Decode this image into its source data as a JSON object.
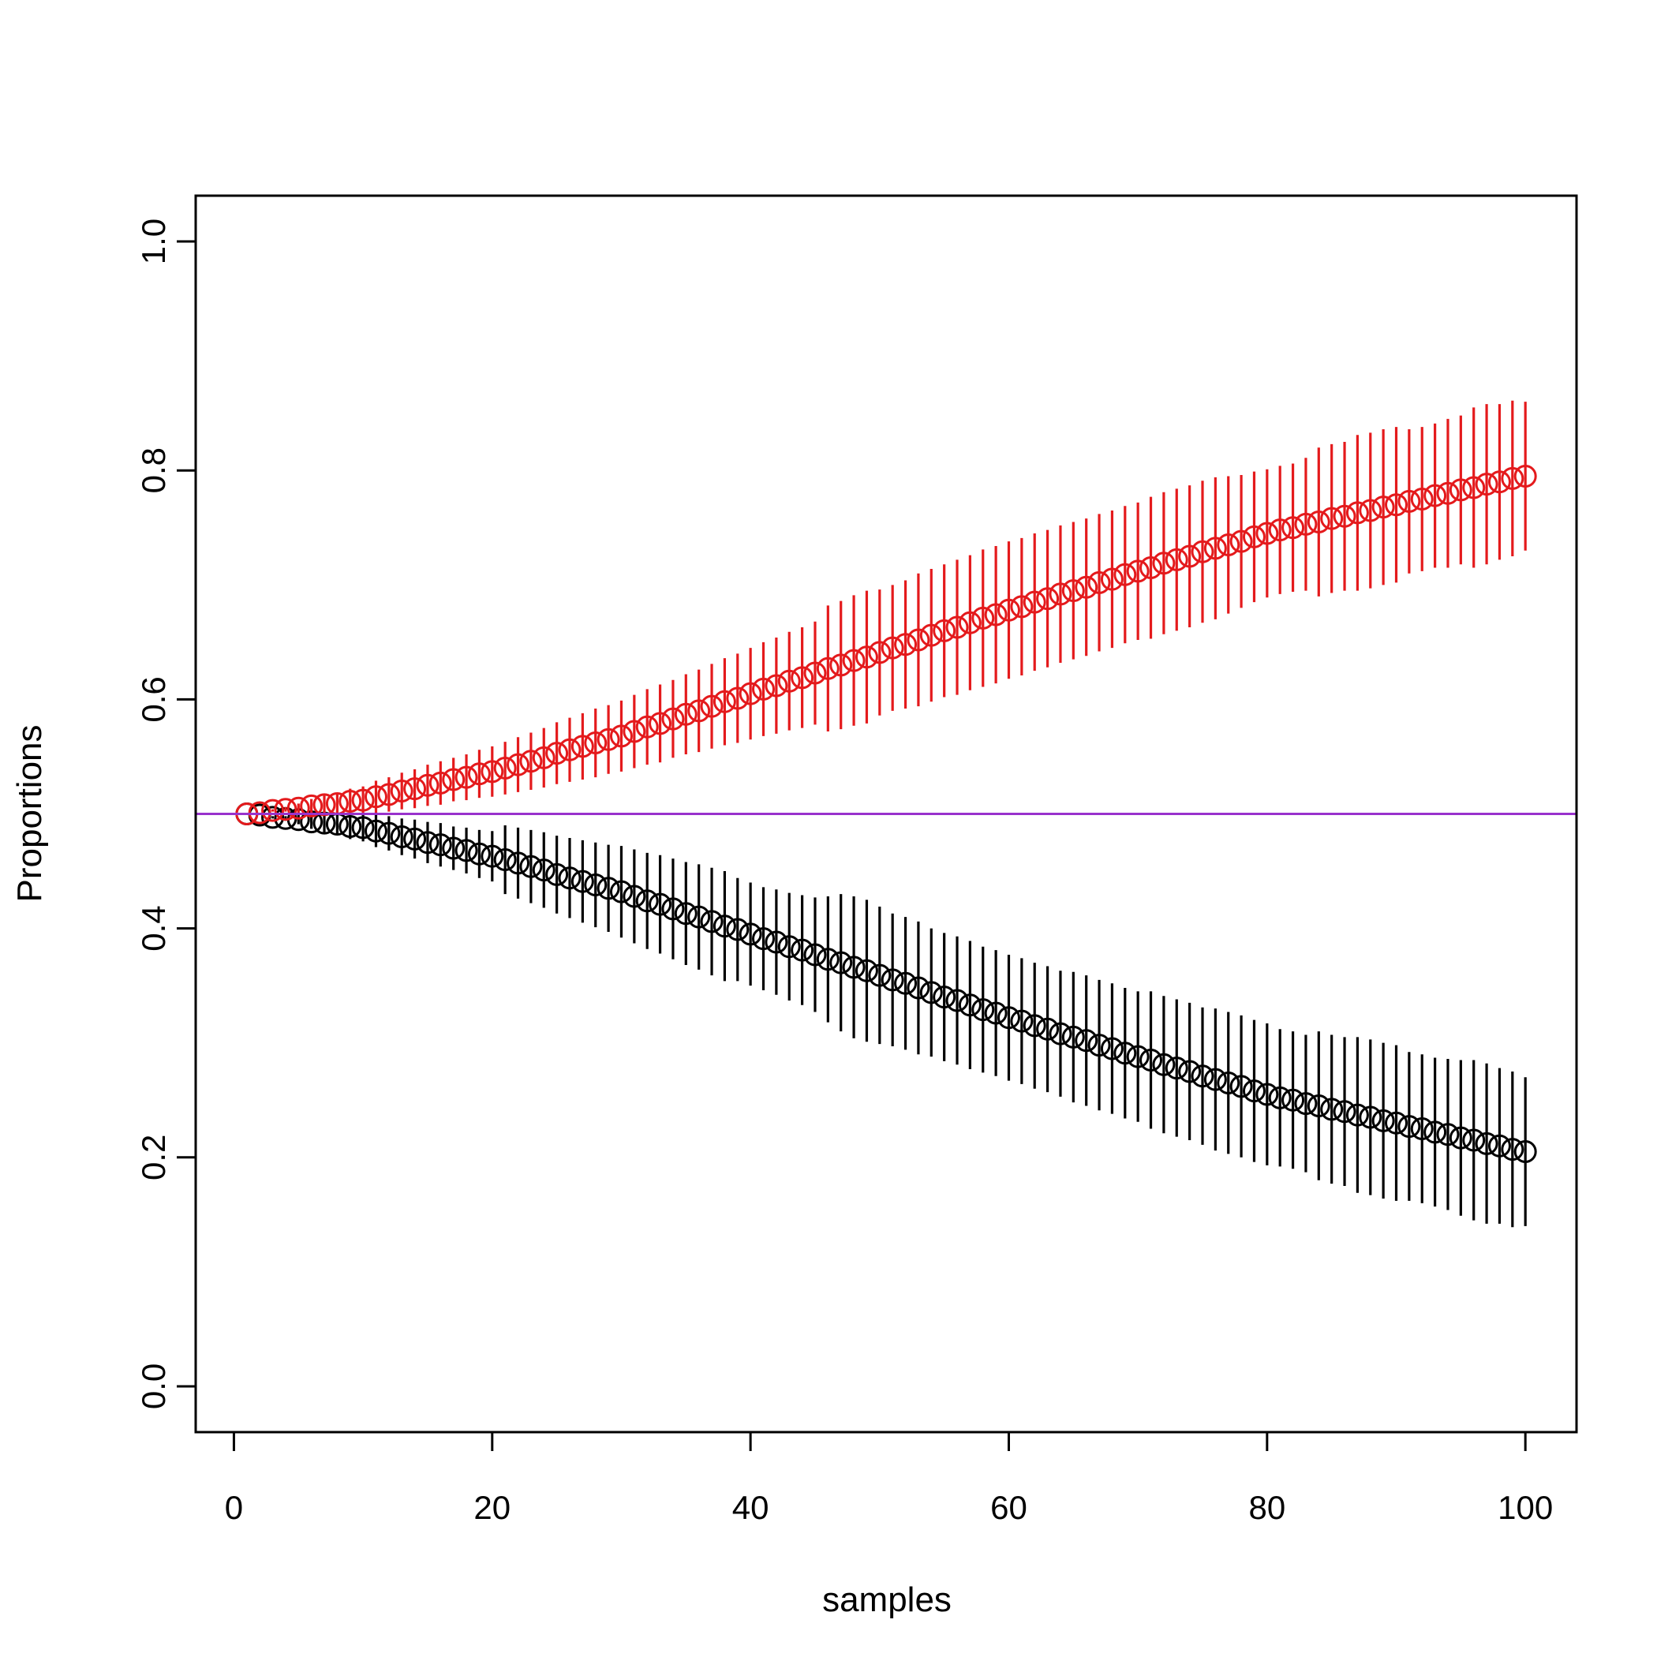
{
  "chart_data": {
    "type": "errorbar",
    "xlabel": "samples",
    "ylabel": "Proportions",
    "xlim": [
      -2.96,
      103.96
    ],
    "ylim": [
      -0.04,
      1.04
    ],
    "xticks": [
      0,
      20,
      40,
      60,
      80,
      100
    ],
    "yticks": [
      {
        "value": 0,
        "label": "0.0"
      },
      0.2,
      0.4,
      0.6,
      0.8,
      {
        "value": 1,
        "label": "1.0"
      }
    ],
    "reference_line": {
      "value": 0.5,
      "color": "#9932cc"
    },
    "x": [
      1,
      2,
      3,
      4,
      5,
      6,
      7,
      8,
      9,
      10,
      11,
      12,
      13,
      14,
      15,
      16,
      17,
      18,
      19,
      20,
      21,
      22,
      23,
      24,
      25,
      26,
      27,
      28,
      29,
      30,
      31,
      32,
      33,
      34,
      35,
      36,
      37,
      38,
      39,
      40,
      41,
      42,
      43,
      44,
      45,
      46,
      47,
      48,
      49,
      50,
      51,
      52,
      53,
      54,
      55,
      56,
      57,
      58,
      59,
      60,
      61,
      62,
      63,
      64,
      65,
      66,
      67,
      68,
      69,
      70,
      71,
      72,
      73,
      74,
      75,
      76,
      77,
      78,
      79,
      80,
      81,
      82,
      83,
      84,
      85,
      86,
      87,
      88,
      89,
      90,
      91,
      92,
      93,
      94,
      95,
      96,
      97,
      98,
      99,
      100
    ],
    "series": [
      {
        "color": "#000000",
        "values": [
          0.5,
          0.499,
          0.497,
          0.496,
          0.495,
          0.493,
          0.492,
          0.491,
          0.489,
          0.488,
          0.485,
          0.483,
          0.48,
          0.478,
          0.475,
          0.473,
          0.47,
          0.468,
          0.465,
          0.463,
          0.46,
          0.457,
          0.454,
          0.451,
          0.447,
          0.444,
          0.441,
          0.438,
          0.435,
          0.432,
          0.428,
          0.424,
          0.421,
          0.417,
          0.413,
          0.41,
          0.406,
          0.402,
          0.399,
          0.395,
          0.391,
          0.388,
          0.384,
          0.381,
          0.377,
          0.373,
          0.37,
          0.366,
          0.363,
          0.359,
          0.355,
          0.352,
          0.348,
          0.344,
          0.34,
          0.337,
          0.333,
          0.329,
          0.326,
          0.322,
          0.319,
          0.315,
          0.312,
          0.308,
          0.305,
          0.302,
          0.298,
          0.295,
          0.291,
          0.288,
          0.285,
          0.281,
          0.278,
          0.275,
          0.271,
          0.268,
          0.265,
          0.262,
          0.258,
          0.255,
          0.252,
          0.25,
          0.247,
          0.245,
          0.242,
          0.24,
          0.237,
          0.235,
          0.232,
          0.23,
          0.227,
          0.225,
          0.222,
          0.22,
          0.217,
          0.215,
          0.212,
          0.21,
          0.207,
          0.205
        ],
        "errors": [
          0,
          0,
          0.001,
          0.002,
          0.004,
          0.006,
          0.008,
          0.009,
          0.011,
          0.012,
          0.014,
          0.015,
          0.016,
          0.017,
          0.018,
          0.019,
          0.019,
          0.02,
          0.021,
          0.022,
          0.03,
          0.031,
          0.032,
          0.033,
          0.034,
          0.035,
          0.036,
          0.037,
          0.038,
          0.04,
          0.041,
          0.042,
          0.043,
          0.044,
          0.045,
          0.046,
          0.047,
          0.048,
          0.045,
          0.045,
          0.045,
          0.046,
          0.047,
          0.048,
          0.05,
          0.055,
          0.06,
          0.062,
          0.062,
          0.06,
          0.058,
          0.058,
          0.058,
          0.056,
          0.056,
          0.056,
          0.056,
          0.055,
          0.055,
          0.055,
          0.055,
          0.055,
          0.055,
          0.055,
          0.057,
          0.057,
          0.057,
          0.057,
          0.057,
          0.057,
          0.06,
          0.06,
          0.06,
          0.06,
          0.06,
          0.062,
          0.062,
          0.062,
          0.062,
          0.062,
          0.06,
          0.06,
          0.06,
          0.065,
          0.065,
          0.065,
          0.068,
          0.068,
          0.068,
          0.068,
          0.065,
          0.065,
          0.065,
          0.066,
          0.068,
          0.07,
          0.07,
          0.068,
          0.068,
          0.065
        ]
      },
      {
        "color": "#e41a1c",
        "values": [
          0.5,
          0.501,
          0.503,
          0.504,
          0.505,
          0.507,
          0.508,
          0.509,
          0.511,
          0.512,
          0.515,
          0.517,
          0.52,
          0.522,
          0.525,
          0.527,
          0.53,
          0.532,
          0.535,
          0.537,
          0.54,
          0.543,
          0.546,
          0.549,
          0.553,
          0.556,
          0.559,
          0.562,
          0.565,
          0.568,
          0.572,
          0.576,
          0.579,
          0.583,
          0.587,
          0.59,
          0.594,
          0.598,
          0.601,
          0.605,
          0.609,
          0.612,
          0.616,
          0.619,
          0.623,
          0.627,
          0.63,
          0.634,
          0.637,
          0.641,
          0.645,
          0.648,
          0.652,
          0.656,
          0.66,
          0.663,
          0.667,
          0.671,
          0.674,
          0.678,
          0.681,
          0.685,
          0.688,
          0.692,
          0.695,
          0.698,
          0.702,
          0.705,
          0.709,
          0.712,
          0.715,
          0.719,
          0.722,
          0.725,
          0.729,
          0.732,
          0.735,
          0.738,
          0.742,
          0.745,
          0.748,
          0.75,
          0.753,
          0.755,
          0.758,
          0.76,
          0.763,
          0.765,
          0.768,
          0.77,
          0.773,
          0.775,
          0.778,
          0.78,
          0.783,
          0.785,
          0.788,
          0.79,
          0.793,
          0.795
        ],
        "errors": [
          0,
          0,
          0.001,
          0.002,
          0.004,
          0.006,
          0.008,
          0.009,
          0.011,
          0.012,
          0.014,
          0.015,
          0.016,
          0.017,
          0.018,
          0.019,
          0.019,
          0.02,
          0.021,
          0.022,
          0.023,
          0.024,
          0.025,
          0.026,
          0.027,
          0.028,
          0.029,
          0.03,
          0.03,
          0.031,
          0.032,
          0.033,
          0.034,
          0.034,
          0.035,
          0.036,
          0.037,
          0.038,
          0.039,
          0.04,
          0.041,
          0.042,
          0.043,
          0.044,
          0.045,
          0.055,
          0.056,
          0.057,
          0.058,
          0.055,
          0.055,
          0.056,
          0.058,
          0.058,
          0.058,
          0.059,
          0.059,
          0.06,
          0.06,
          0.06,
          0.06,
          0.06,
          0.06,
          0.06,
          0.06,
          0.06,
          0.06,
          0.06,
          0.06,
          0.06,
          0.062,
          0.062,
          0.062,
          0.062,
          0.062,
          0.062,
          0.06,
          0.058,
          0.057,
          0.056,
          0.056,
          0.056,
          0.058,
          0.065,
          0.065,
          0.065,
          0.068,
          0.068,
          0.068,
          0.068,
          0.063,
          0.063,
          0.063,
          0.065,
          0.065,
          0.07,
          0.07,
          0.068,
          0.068,
          0.065
        ]
      }
    ]
  }
}
